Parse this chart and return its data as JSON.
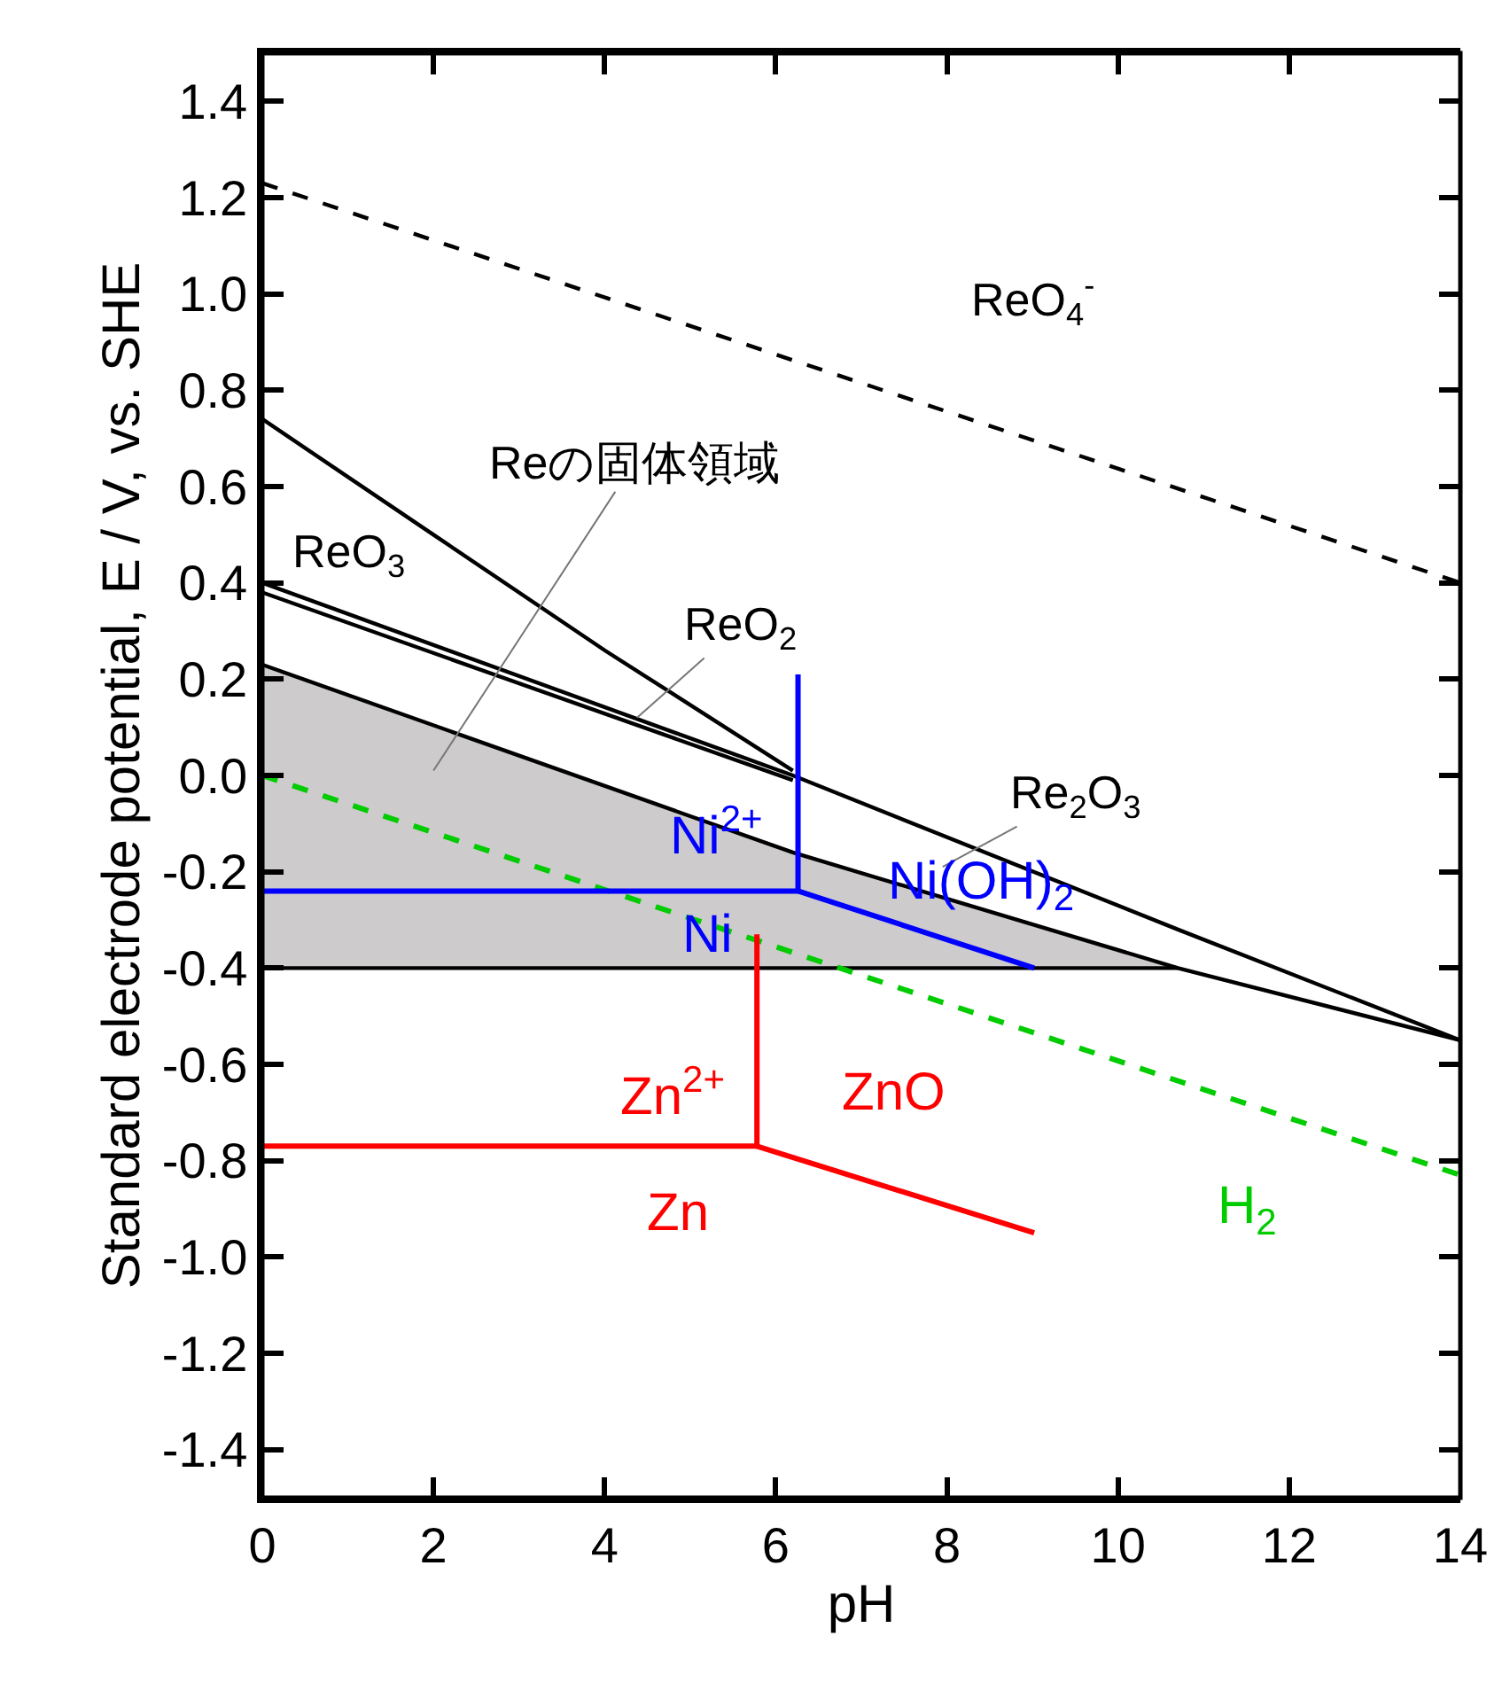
{
  "chart_data": {
    "type": "line",
    "xlabel": "pH",
    "ylabel": "Standard electrode potential, E / V, vs. SHE",
    "xlim": [
      0,
      14
    ],
    "xticks": [
      0,
      2,
      4,
      6,
      8,
      10,
      12,
      14
    ],
    "ylim": [
      -1.5,
      1.5
    ],
    "yticks": [
      -1.4,
      -1.2,
      {
        "value": -1.0,
        "label": "-1.0"
      },
      -0.8,
      -0.6,
      -0.4,
      -0.2,
      {
        "value": 0,
        "label": "0.0"
      },
      0.2,
      0.4,
      0.6,
      0.8,
      {
        "value": 1.0,
        "label": "1.0"
      },
      1.2,
      1.4
    ],
    "marker": "none",
    "series": [
      {
        "color": "#000000",
        "line_style": "dashed",
        "x": [
          0,
          14
        ],
        "values": [
          1.23,
          0.4
        ]
      },
      {
        "color": "#000000",
        "line_style": "solid",
        "x": [
          0,
          2,
          4,
          6.2
        ],
        "values": [
          0.74,
          0.5,
          0.26,
          0.01
        ]
      },
      {
        "color": "#000000",
        "line_style": "solid",
        "x": [
          0,
          6.2,
          10.7,
          14
        ],
        "values": [
          0.4,
          0.0,
          -0.32,
          -0.55
        ]
      },
      {
        "color": "#000000",
        "line_style": "solid",
        "x": [
          0,
          6.2
        ],
        "values": [
          0.38,
          -0.01
        ]
      },
      {
        "color": "#000000",
        "line_style": "solid",
        "x": [
          0,
          6.2,
          10.7,
          14
        ],
        "values": [
          0.23,
          -0.16,
          -0.4,
          -0.55
        ],
        "lower": [
          -0.4,
          -0.4,
          -0.4,
          null
        ],
        "upper": [
          0.23,
          -0.16,
          -0.4,
          null
        ]
      },
      {
        "color": "#000000",
        "line_style": "solid",
        "x": [
          0,
          10.7
        ],
        "values": [
          -0.4,
          -0.4
        ]
      },
      {
        "color": "#00cc00",
        "line_style": "dashed",
        "x": [
          0,
          14
        ],
        "values": [
          0.0,
          -0.83
        ]
      },
      {
        "color": "#0000ff",
        "line_style": "solid",
        "x": [
          0,
          6.26,
          6.26
        ],
        "values": [
          -0.24,
          -0.24,
          0.21
        ]
      },
      {
        "color": "#0000ff",
        "line_style": "solid",
        "x": [
          6.26,
          9.02
        ],
        "values": [
          -0.24,
          -0.4
        ]
      },
      {
        "color": "#ff0000",
        "line_style": "solid",
        "x": [
          0,
          5.78,
          5.78
        ],
        "values": [
          -0.77,
          -0.77,
          -0.33
        ]
      },
      {
        "color": "#ff0000",
        "line_style": "solid",
        "x": [
          5.78,
          9.02
        ],
        "values": [
          -0.77,
          -0.95
        ]
      }
    ],
    "annotations": [
      "ReO$_{4}$$^{-}$",
      "Reの固体領域",
      "ReO$_{3}$",
      {
        "text": "ReO$_{2}$",
        "x": 4.38,
        "y": 0.12
      },
      "Re$_{2}$O$_{3}$",
      "Ni$^{2+}$",
      "Ni(OH)$_{2}$",
      "Ni",
      "Zn$^{2+}$",
      "ZnO",
      "Zn",
      "H$_{2}$"
    ]
  }
}
